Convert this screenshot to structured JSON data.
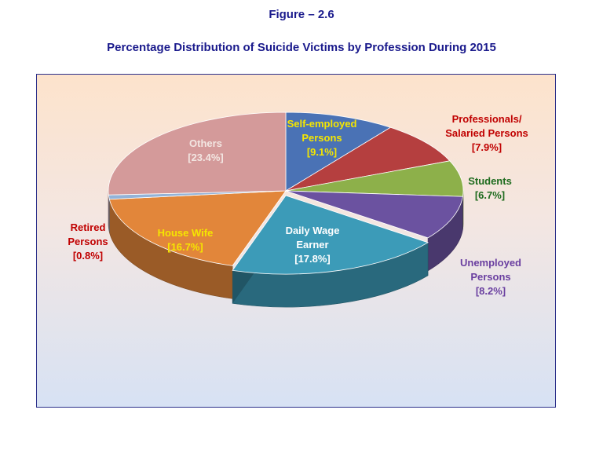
{
  "figure_label": "Figure – 2.6",
  "chart_data": {
    "type": "pie",
    "title": "Percentage Distribution of Suicide Victims by Profession During 2015",
    "slices": [
      {
        "name": "Self-employed Persons",
        "value": 9.1,
        "label_lines": [
          "Self-employed",
          "Persons"
        ],
        "value_label": "[9.1%]",
        "color": "#4a72b5",
        "label_color": "#f5e600"
      },
      {
        "name": "Professionals/ Salaried Persons",
        "value": 7.9,
        "label_lines": [
          "Professionals/",
          "Salaried Persons"
        ],
        "value_label": "[7.9%]",
        "color": "#b53f3f",
        "label_color": "#c00000"
      },
      {
        "name": "Students",
        "value": 6.7,
        "label_lines": [
          "Students"
        ],
        "value_label": "[6.7%]",
        "color": "#8db04a",
        "label_color": "#1e6b1e"
      },
      {
        "name": "Unemployed Persons",
        "value": 8.2,
        "label_lines": [
          "Unemployed",
          "Persons"
        ],
        "value_label": "[8.2%]",
        "color": "#6b52a0",
        "label_color": "#6a3fa0"
      },
      {
        "name": "Daily Wage Earner",
        "value": 17.8,
        "label_lines": [
          "Daily Wage",
          "Earner"
        ],
        "value_label": "[17.8%]",
        "color": "#3c9bb8",
        "label_color": "#ffffff"
      },
      {
        "name": "House Wife",
        "value": 16.7,
        "label_lines": [
          "House Wife"
        ],
        "value_label": "[16.7%]",
        "color": "#e2863a",
        "label_color": "#f5e600"
      },
      {
        "name": "Retired Persons",
        "value": 0.8,
        "label_lines": [
          "Retired",
          "Persons"
        ],
        "value_label": "[0.8%]",
        "color": "#93b3d8",
        "label_color": "#c00000"
      },
      {
        "name": "Others",
        "value": 23.4,
        "label_lines": [
          "Others"
        ],
        "value_label": "[23.4%]",
        "color": "#d49a9a",
        "label_color": "#f3e6e2"
      }
    ],
    "legend": "none",
    "style": "3d-exploded-pie"
  }
}
